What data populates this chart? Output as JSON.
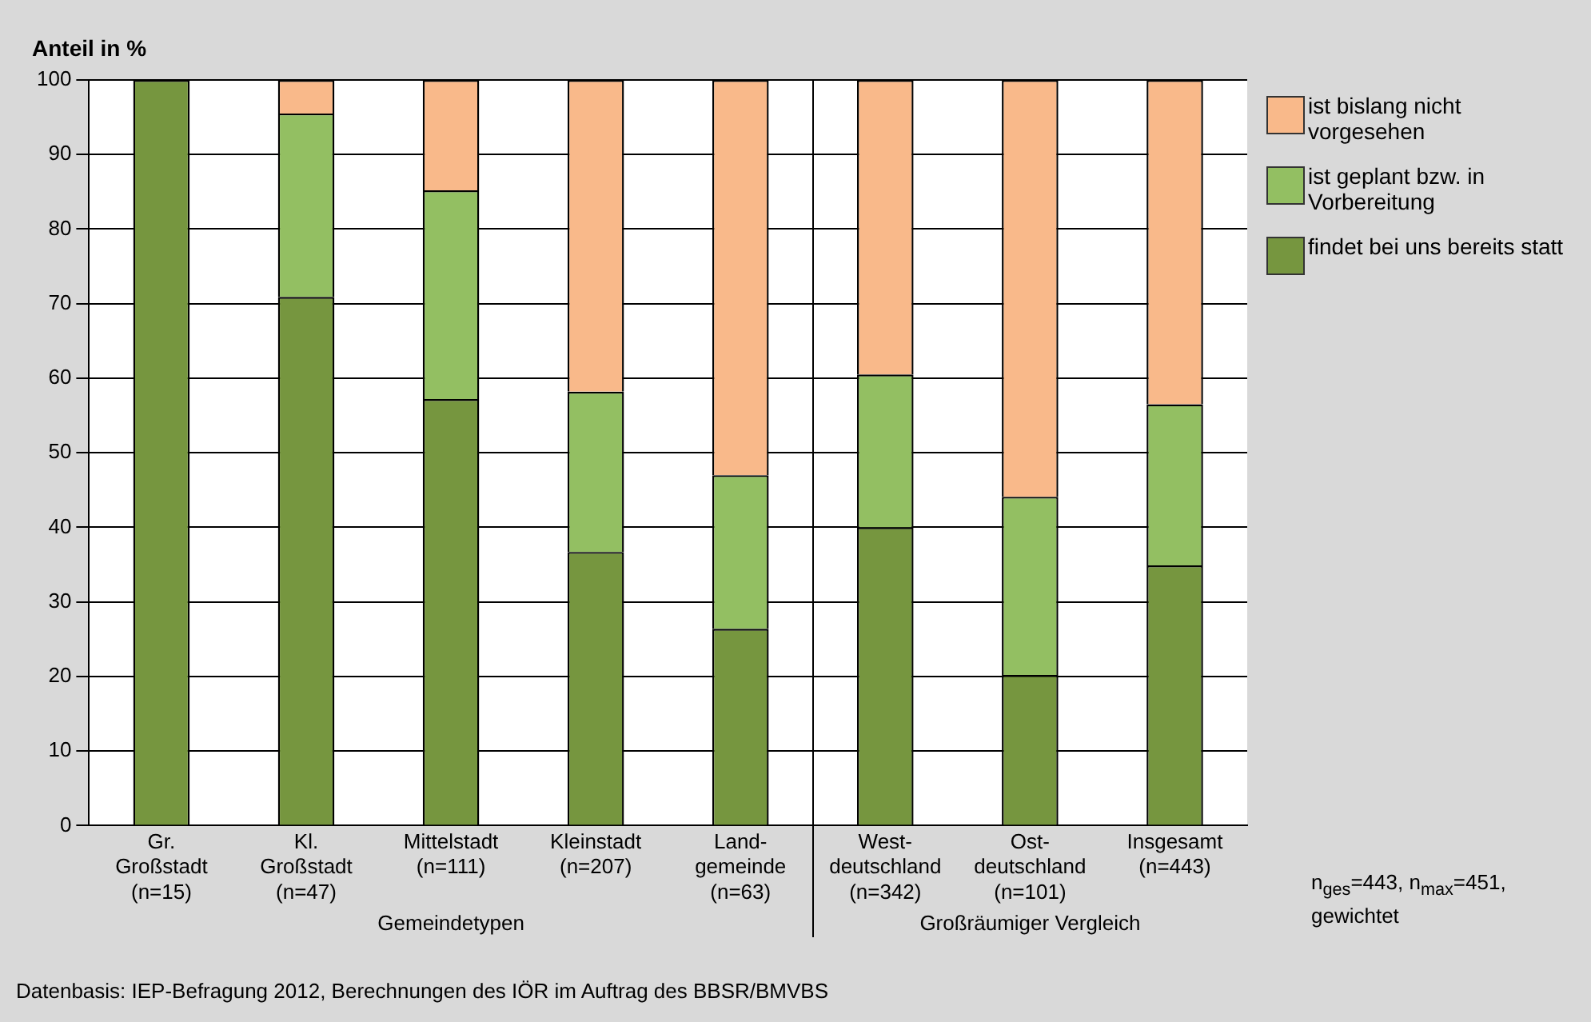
{
  "chart_data": {
    "type": "bar",
    "stacked": true,
    "ylabel": "Anteil in %",
    "categories": [
      "Gr.\nGroßstadt\n(n=15)",
      "Kl.\nGroßstadt\n(n=47)",
      "Mittelstadt\n(n=111)",
      "Kleinstadt\n(n=207)",
      "Land-\ngemeinde\n(n=63)",
      "West-\ndeutschland\n(n=342)",
      "Ost-\ndeutschland\n(n=101)",
      "Insgesamt\n(n=443)"
    ],
    "series": [
      {
        "name": "findet bei uns bereits statt",
        "color": "#76963f",
        "values": [
          100,
          70.9,
          57.2,
          36.7,
          26.4,
          40.0,
          20.2,
          34.9
        ]
      },
      {
        "name": "ist geplant bzw. in Vorbereitung",
        "color": "#93bf62",
        "values": [
          0,
          24.6,
          28.0,
          21.5,
          20.6,
          20.5,
          23.9,
          21.6
        ]
      },
      {
        "name": "ist bislang nicht vorgesehen",
        "color": "#f9b98a",
        "values": [
          0,
          4.5,
          14.8,
          41.8,
          53.0,
          39.5,
          55.9,
          43.5
        ]
      }
    ],
    "ylim": [
      0,
      100
    ],
    "yticks": [
      0,
      10,
      20,
      30,
      40,
      50,
      60,
      70,
      80,
      90,
      100
    ],
    "grid": "y",
    "legend": "right",
    "annotations": [
      "Gemeindetypen",
      "Großräumiger Vergleich",
      "n$_{ges}$=443, n$_{max}$=451, gewichtet",
      "Datenbasis: IEP-Befragung 2012, Berechnungen des IÖR im Auftrag des BBSR/BMVBS"
    ]
  }
}
